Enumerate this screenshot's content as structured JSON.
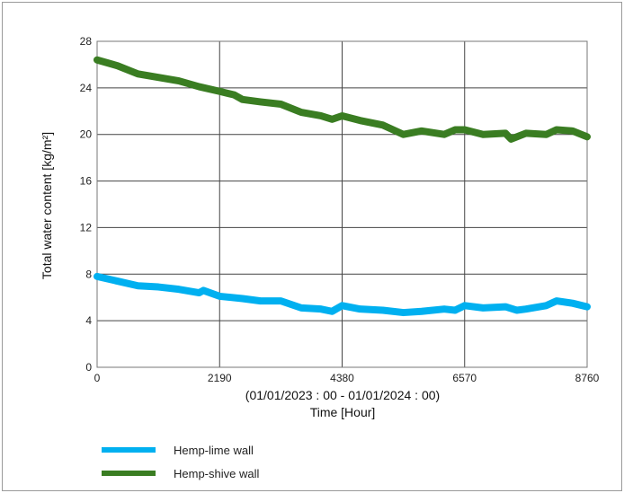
{
  "chart_data": {
    "type": "line",
    "title": "",
    "xlabel_line1": "(01/01/2023 : 00 - 01/01/2024 : 00)",
    "xlabel": "Time  [Hour]",
    "ylabel": "Total water content [kg/m²]",
    "xlim": [
      0,
      8760
    ],
    "ylim": [
      0,
      28
    ],
    "xticks": [
      "0",
      "2190",
      "4380",
      "6570",
      "8760"
    ],
    "yticks": [
      "0",
      "4",
      "8",
      "12",
      "16",
      "20",
      "24",
      "28"
    ],
    "grid": true,
    "legend_position": "bottom-left",
    "series": [
      {
        "name": "Hemp-lime wall",
        "color": "#00b0f0",
        "x": [
          0,
          365,
          730,
          1095,
          1460,
          1825,
          1900,
          2190,
          2600,
          2920,
          3285,
          3650,
          4000,
          4200,
          4380,
          4700,
          5110,
          5475,
          5800,
          6205,
          6400,
          6570,
          6900,
          7300,
          7500,
          7665,
          8030,
          8212,
          8500,
          8760
        ],
        "y": [
          7.8,
          7.4,
          7.0,
          6.9,
          6.7,
          6.4,
          6.6,
          6.1,
          5.9,
          5.7,
          5.7,
          5.1,
          5.0,
          4.8,
          5.3,
          5.0,
          4.9,
          4.7,
          4.8,
          5.0,
          4.9,
          5.3,
          5.1,
          5.2,
          4.9,
          5.0,
          5.3,
          5.7,
          5.5,
          5.2
        ]
      },
      {
        "name": "Hemp-shive wall",
        "color": "#3a7d22",
        "x": [
          0,
          365,
          730,
          1095,
          1460,
          1825,
          2190,
          2450,
          2600,
          2920,
          3285,
          3650,
          4000,
          4200,
          4380,
          4700,
          5110,
          5475,
          5800,
          6205,
          6400,
          6570,
          6900,
          7300,
          7400,
          7665,
          8030,
          8212,
          8500,
          8760
        ],
        "y": [
          26.4,
          25.9,
          25.2,
          24.9,
          24.6,
          24.1,
          23.7,
          23.4,
          23.0,
          22.8,
          22.6,
          21.9,
          21.6,
          21.3,
          21.6,
          21.2,
          20.8,
          20.0,
          20.3,
          20.0,
          20.4,
          20.4,
          20.0,
          20.1,
          19.6,
          20.1,
          20.0,
          20.4,
          20.3,
          19.8
        ]
      }
    ]
  }
}
